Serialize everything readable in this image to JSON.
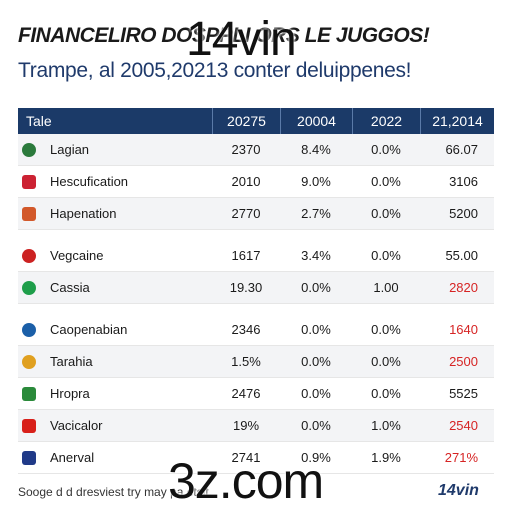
{
  "header": {
    "title_line1": "FINANCELIRO DOSPPLI        ORS LE JUGGOS!",
    "title_line2": "Trampe, al 2005,20213 conter deluippenes!",
    "watermark_top": "14vin"
  },
  "table": {
    "headers": [
      "Tale",
      "20275",
      "20004",
      "2022",
      "21,2014"
    ],
    "rows": [
      {
        "name": "Lagian",
        "v1": "2370",
        "v2": "8.4%",
        "v3": "0.0%",
        "v4": "66.07",
        "v4_red": false,
        "icon": "flag-icon",
        "color": "#2b7a3c"
      },
      {
        "name": "Hescufication",
        "v1": "2010",
        "v2": "9.0%",
        "v3": "0.0%",
        "v4": "3106",
        "v4_red": false,
        "icon": "us-flag-icon",
        "color": "#c23"
      },
      {
        "name": "Hapenation",
        "v1": "2770",
        "v2": "2.7%",
        "v3": "0.0%",
        "v4": "5200",
        "v4_red": false,
        "icon": "shield-flag-icon",
        "color": "#d2582a"
      },
      {
        "name": "Vegcaine",
        "v1": "1617",
        "v2": "3.4%",
        "v3": "0.0%",
        "v4": "55.00",
        "v4_red": false,
        "icon": "korea-flag-icon",
        "color": "#c22"
      },
      {
        "name": "Cassia",
        "v1": "19.30",
        "v2": "0.0%",
        "v3": "1.00",
        "v4": "2820",
        "v4_red": true,
        "icon": "brazil-flag-icon",
        "color": "#1e9e4a"
      },
      {
        "name": "Caopenabian",
        "v1": "2346",
        "v2": "0.0%",
        "v3": "0.0%",
        "v4": "1640",
        "v4_red": true,
        "icon": "globe-flag-icon",
        "color": "#1b5fa8"
      },
      {
        "name": "Tarahia",
        "v1": "1.5%",
        "v2": "0.0%",
        "v3": "0.0%",
        "v4": "2500",
        "v4_red": true,
        "icon": "chrome-flag-icon",
        "color": "#e0a020"
      },
      {
        "name": "Hropra",
        "v1": "2476",
        "v2": "0.0%",
        "v3": "0.0%",
        "v4": "5525",
        "v4_red": false,
        "icon": "triangle-flag-icon",
        "color": "#2a8a3a"
      },
      {
        "name": "Vacicalor",
        "v1": "19%",
        "v2": "0.0%",
        "v3": "1.0%",
        "v4": "2540",
        "v4_red": true,
        "icon": "china-flag-icon",
        "color": "#d8201a"
      },
      {
        "name": "Anerval",
        "v1": "2741",
        "v2": "0.9%",
        "v3": "1.9%",
        "v4": "271%",
        "v4_red": true,
        "icon": "uk-flag-icon",
        "color": "#203a88"
      }
    ]
  },
  "footer": {
    "note": "Sooge d d dresviest try may pa        etsit,",
    "brand": "14vin",
    "watermark_bottom": "3z.com"
  }
}
